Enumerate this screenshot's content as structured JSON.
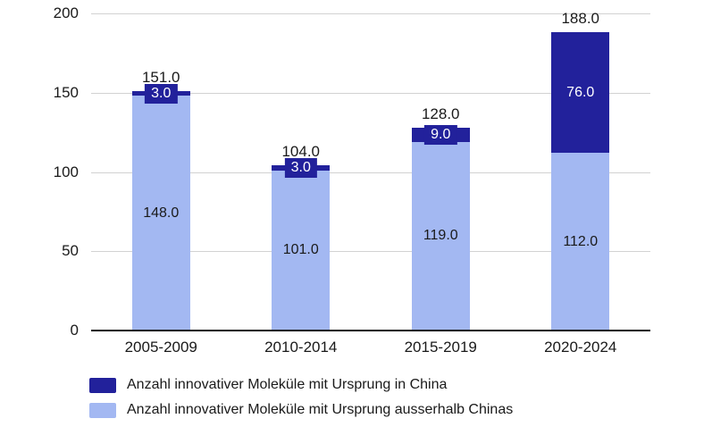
{
  "chart_data": {
    "type": "bar",
    "stacked": true,
    "title": "",
    "xlabel": "",
    "ylabel": "",
    "categories": [
      "2005-2009",
      "2010-2014",
      "2015-2019",
      "2020-2024"
    ],
    "series": [
      {
        "name": "Anzahl innovativer Moleküle mit Ursprung ausserhalb Chinas",
        "color": "#a3b8f2",
        "values": [
          148,
          101,
          119,
          112
        ],
        "labels": [
          "148.0",
          "101.0",
          "119.0",
          "112.0"
        ],
        "label_color": "#1a1a1a"
      },
      {
        "name": "Anzahl innovativer Moleküle mit Ursprung in China",
        "color": "#22219b",
        "values": [
          3,
          3,
          9,
          76
        ],
        "labels": [
          "3.0",
          "3.0",
          "9.0",
          "76.0"
        ],
        "label_color": "#ffffff"
      }
    ],
    "totals": [
      151,
      104,
      128,
      188
    ],
    "total_labels": [
      "151.0",
      "104.0",
      "128.0",
      "188.0"
    ],
    "y_ticks": [
      0,
      50,
      100,
      150,
      200
    ],
    "y_tick_labels": [
      "0",
      "50",
      "100",
      "150",
      "200"
    ],
    "ylim": [
      0,
      200
    ],
    "grid": true,
    "legend_position": "bottom-left",
    "legend": [
      {
        "label": "Anzahl innovativer Moleküle mit Ursprung in China",
        "color": "#22219b"
      },
      {
        "label": "Anzahl innovativer Moleküle mit Ursprung ausserhalb Chinas",
        "color": "#a3b8f2"
      }
    ],
    "colors": {
      "china_series": "#22219b",
      "outside_china_series": "#a3b8f2",
      "gridline": "#d2d2d2",
      "axis": "#111111",
      "text": "#1a1a1a"
    }
  }
}
